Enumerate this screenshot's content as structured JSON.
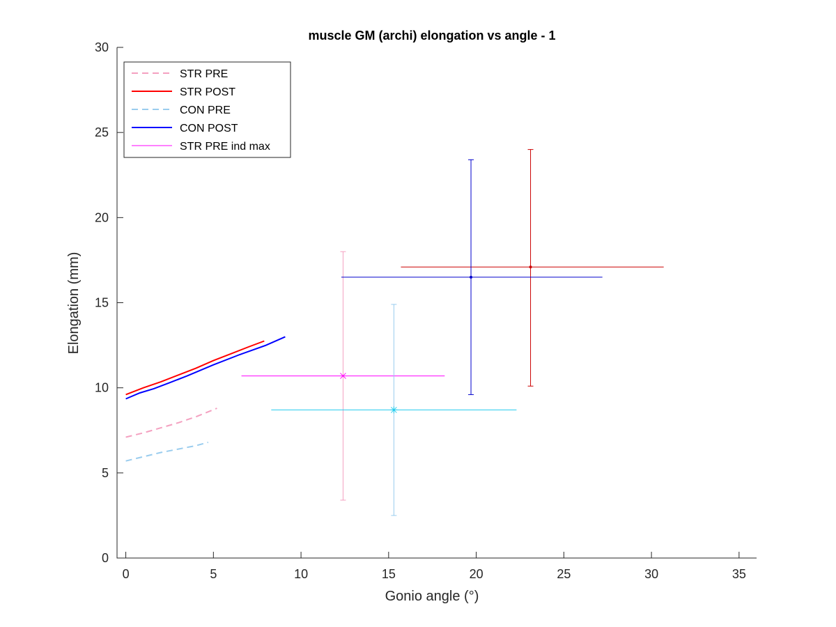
{
  "chart_data": {
    "type": "line",
    "title": "muscle GM (archi) elongation vs angle - 1",
    "xlabel": "Gonio angle (°)",
    "ylabel": "Elongation (mm)",
    "xlim": [
      -0.5,
      36
    ],
    "ylim": [
      0,
      30
    ],
    "xticks": [
      0,
      5,
      10,
      15,
      20,
      25,
      30,
      35
    ],
    "yticks": [
      0,
      5,
      10,
      15,
      20,
      25,
      30
    ],
    "grid": false,
    "legend_position": "top-left",
    "series": [
      {
        "name": "STR PRE",
        "color": "#f4a0c0",
        "dash": "dashed",
        "points": [
          [
            0,
            7.1
          ],
          [
            1,
            7.35
          ],
          [
            2,
            7.65
          ],
          [
            3,
            7.95
          ],
          [
            4,
            8.3
          ],
          [
            5.2,
            8.8
          ]
        ]
      },
      {
        "name": "STR POST",
        "color": "#ff0000",
        "dash": "solid",
        "points": [
          [
            0,
            9.6
          ],
          [
            1,
            10.0
          ],
          [
            2,
            10.35
          ],
          [
            3,
            10.75
          ],
          [
            4,
            11.15
          ],
          [
            5,
            11.6
          ],
          [
            6,
            12.0
          ],
          [
            7,
            12.4
          ],
          [
            7.9,
            12.75
          ]
        ]
      },
      {
        "name": "CON PRE",
        "color": "#99ccee",
        "dash": "dashed",
        "points": [
          [
            0,
            5.7
          ],
          [
            1,
            5.95
          ],
          [
            2,
            6.2
          ],
          [
            3,
            6.4
          ],
          [
            4,
            6.6
          ],
          [
            4.7,
            6.8
          ]
        ]
      },
      {
        "name": "CON POST",
        "color": "#0000ff",
        "dash": "solid",
        "points": [
          [
            0,
            9.35
          ],
          [
            0.8,
            9.7
          ],
          [
            1.6,
            9.95
          ],
          [
            2.5,
            10.3
          ],
          [
            3.5,
            10.7
          ],
          [
            5,
            11.35
          ],
          [
            6.5,
            11.95
          ],
          [
            8,
            12.5
          ],
          [
            9.1,
            13.0
          ]
        ]
      },
      {
        "name": "STR PRE ind max",
        "color": "#ff00ff",
        "dash": "solid",
        "points": []
      }
    ],
    "errorbars": [
      {
        "color": "#f4a0c0",
        "x": 12.4,
        "y": 10.7,
        "ylow": 3.4,
        "yhigh": 18.0,
        "xlow": 12.4,
        "xhigh": 12.4,
        "marker": "none"
      },
      {
        "color": "#ff00ff",
        "x": 12.4,
        "y": 10.7,
        "ylow": 10.7,
        "yhigh": 10.7,
        "xlow": 6.6,
        "xhigh": 18.2,
        "marker": "x"
      },
      {
        "color": "#99ccee",
        "x": 15.3,
        "y": 8.7,
        "ylow": 2.5,
        "yhigh": 14.9,
        "xlow": 15.3,
        "xhigh": 15.3,
        "marker": "none"
      },
      {
        "color": "#22ccee",
        "x": 15.3,
        "y": 8.7,
        "ylow": 8.7,
        "yhigh": 8.7,
        "xlow": 8.3,
        "xhigh": 22.3,
        "marker": "star"
      },
      {
        "color": "#cc0000",
        "x": 23.1,
        "y": 17.1,
        "ylow": 10.1,
        "yhigh": 24.0,
        "xlow": 15.7,
        "xhigh": 30.7,
        "marker": "dot"
      },
      {
        "color": "#0000cc",
        "x": 19.7,
        "y": 16.5,
        "ylow": 9.6,
        "yhigh": 23.4,
        "xlow": 12.3,
        "xhigh": 27.2,
        "marker": "dot"
      }
    ]
  }
}
